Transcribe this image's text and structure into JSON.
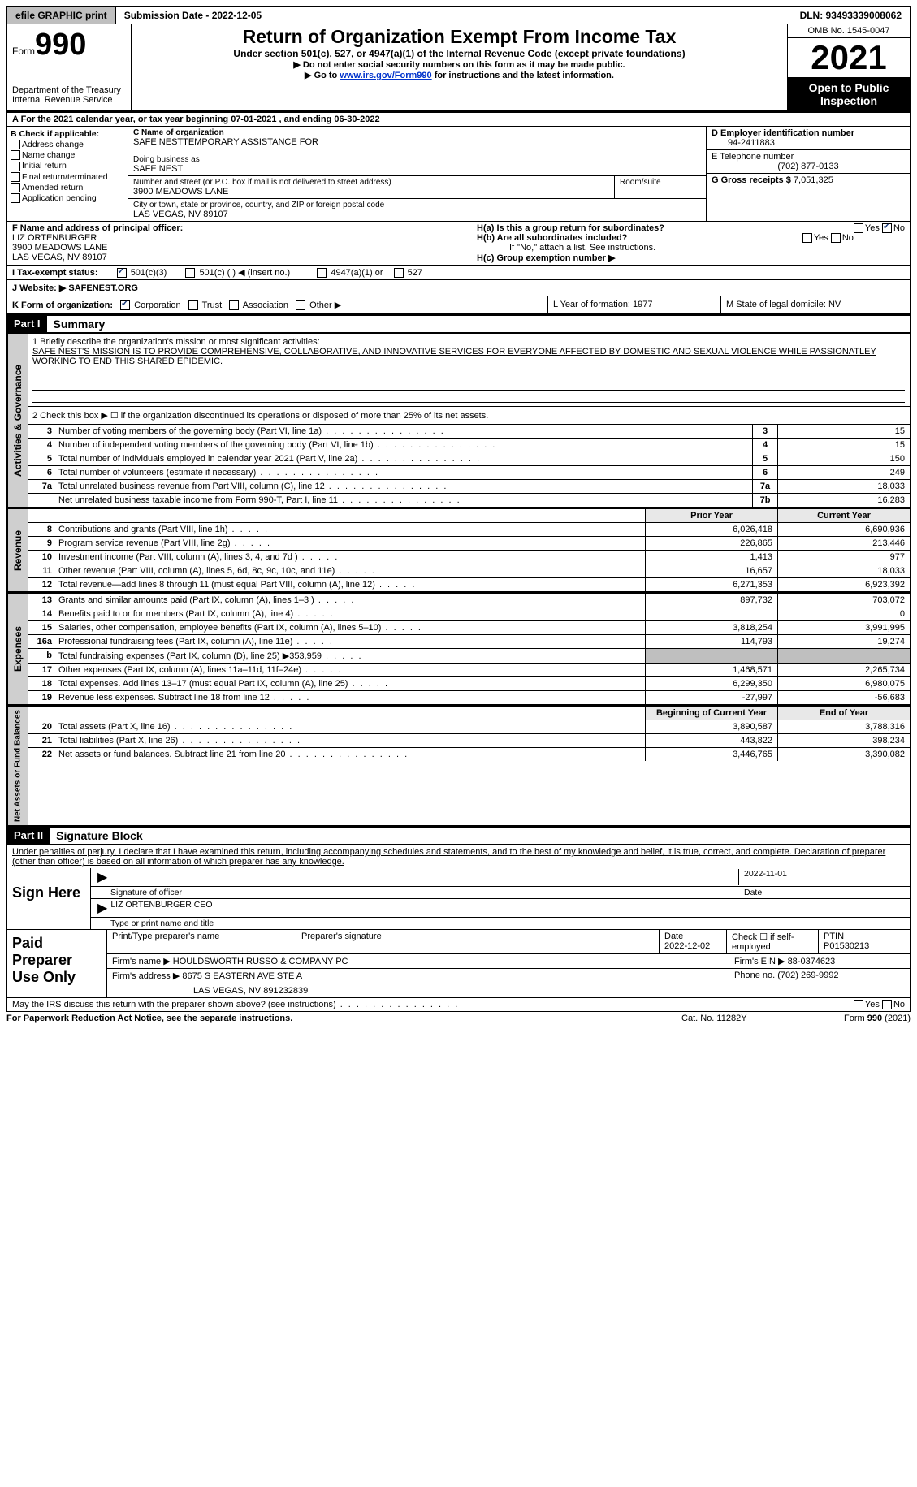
{
  "topbar": {
    "efile": "efile GRAPHIC print",
    "submission": "Submission Date - 2022-12-05",
    "dln": "DLN: 93493339008062"
  },
  "header": {
    "form_prefix": "Form",
    "form_number": "990",
    "title": "Return of Organization Exempt From Income Tax",
    "subtitle": "Under section 501(c), 527, or 4947(a)(1) of the Internal Revenue Code (except private foundations)",
    "note1": "▶ Do not enter social security numbers on this form as it may be made public.",
    "note2_prefix": "▶ Go to ",
    "note2_link": "www.irs.gov/Form990",
    "note2_suffix": " for instructions and the latest information.",
    "dept": "Department of the Treasury Internal Revenue Service",
    "omb": "OMB No. 1545-0047",
    "year": "2021",
    "open": "Open to Public Inspection"
  },
  "rowA": "A For the 2021 calendar year, or tax year beginning 07-01-2021     , and ending 06-30-2022",
  "colB": {
    "title": "B Check if applicable:",
    "opts": [
      "Address change",
      "Name change",
      "Initial return",
      "Final return/terminated",
      "Amended return",
      "Application pending"
    ]
  },
  "colC": {
    "name_label": "C Name of organization",
    "name": "SAFE NESTTEMPORARY ASSISTANCE FOR",
    "dba_label": "Doing business as",
    "dba": "SAFE NEST",
    "addr_label": "Number and street (or P.O. box if mail is not delivered to street address)",
    "addr": "3900 MEADOWS LANE",
    "room_label": "Room/suite",
    "city_label": "City or town, state or province, country, and ZIP or foreign postal code",
    "city": "LAS VEGAS, NV  89107"
  },
  "colD": {
    "ein_label": "D Employer identification number",
    "ein": "94-2411883",
    "phone_label": "E Telephone number",
    "phone": "(702) 877-0133",
    "gross_label": "G Gross receipts $",
    "gross": "7,051,325"
  },
  "rowF": {
    "label": "F  Name and address of principal officer:",
    "name": "LIZ ORTENBURGER",
    "addr1": "3900 MEADOWS LANE",
    "addr2": "LAS VEGAS, NV  89107"
  },
  "rowH": {
    "ha": "H(a)  Is this a group return for subordinates?",
    "hb": "H(b)  Are all subordinates included?",
    "hb_note": "If \"No,\" attach a list. See instructions.",
    "hc": "H(c)  Group exemption number ▶",
    "yes": "Yes",
    "no": "No"
  },
  "rowI": {
    "label": "I   Tax-exempt status:",
    "opt1": "501(c)(3)",
    "opt2": "501(c) (   ) ◀ (insert no.)",
    "opt3": "4947(a)(1) or",
    "opt4": "527"
  },
  "rowJ": {
    "label": "J   Website: ▶",
    "value": "SAFENEST.ORG"
  },
  "rowK": {
    "label": "K Form of organization:",
    "opts": [
      "Corporation",
      "Trust",
      "Association",
      "Other ▶"
    ]
  },
  "rowL": "L Year of formation: 1977",
  "rowM": "M State of legal domicile: NV",
  "part1": {
    "hdr": "Part I",
    "title": "Summary"
  },
  "q1": {
    "label": "1   Briefly describe the organization's mission or most significant activities:",
    "text": "SAFE NEST'S MISSION IS TO PROVIDE COMPREHENSIVE, COLLABORATIVE, AND INNOVATIVE SERVICES FOR EVERYONE AFFECTED BY DOMESTIC AND SEXUAL VIOLENCE WHILE PASSIONATLEY WORKING TO END THIS SHARED EPIDEMIC."
  },
  "q2": "2    Check this box ▶ ☐  if the organization discontinued its operations or disposed of more than 25% of its net assets.",
  "side1": "Activities & Governance",
  "side2": "Revenue",
  "side3": "Expenses",
  "side4": "Net Assets or Fund Balances",
  "rows_gov": [
    {
      "n": "3",
      "d": "Number of voting members of the governing body (Part VI, line 1a)",
      "b": "3",
      "v": "15"
    },
    {
      "n": "4",
      "d": "Number of independent voting members of the governing body (Part VI, line 1b)",
      "b": "4",
      "v": "15"
    },
    {
      "n": "5",
      "d": "Total number of individuals employed in calendar year 2021 (Part V, line 2a)",
      "b": "5",
      "v": "150"
    },
    {
      "n": "6",
      "d": "Total number of volunteers (estimate if necessary)",
      "b": "6",
      "v": "249"
    },
    {
      "n": "7a",
      "d": "Total unrelated business revenue from Part VIII, column (C), line 12",
      "b": "7a",
      "v": "18,033"
    },
    {
      "n": "",
      "d": "Net unrelated business taxable income from Form 990-T, Part I, line 11",
      "b": "7b",
      "v": "16,283"
    }
  ],
  "col_hdr": {
    "py": "Prior Year",
    "cy": "Current Year"
  },
  "rows_rev": [
    {
      "n": "8",
      "d": "Contributions and grants (Part VIII, line 1h)",
      "py": "6,026,418",
      "cy": "6,690,936"
    },
    {
      "n": "9",
      "d": "Program service revenue (Part VIII, line 2g)",
      "py": "226,865",
      "cy": "213,446"
    },
    {
      "n": "10",
      "d": "Investment income (Part VIII, column (A), lines 3, 4, and 7d )",
      "py": "1,413",
      "cy": "977"
    },
    {
      "n": "11",
      "d": "Other revenue (Part VIII, column (A), lines 5, 6d, 8c, 9c, 10c, and 11e)",
      "py": "16,657",
      "cy": "18,033"
    },
    {
      "n": "12",
      "d": "Total revenue—add lines 8 through 11 (must equal Part VIII, column (A), line 12)",
      "py": "6,271,353",
      "cy": "6,923,392"
    }
  ],
  "rows_exp": [
    {
      "n": "13",
      "d": "Grants and similar amounts paid (Part IX, column (A), lines 1–3 )",
      "py": "897,732",
      "cy": "703,072"
    },
    {
      "n": "14",
      "d": "Benefits paid to or for members (Part IX, column (A), line 4)",
      "py": "",
      "cy": "0"
    },
    {
      "n": "15",
      "d": "Salaries, other compensation, employee benefits (Part IX, column (A), lines 5–10)",
      "py": "3,818,254",
      "cy": "3,991,995"
    },
    {
      "n": "16a",
      "d": "Professional fundraising fees (Part IX, column (A), line 11e)",
      "py": "114,793",
      "cy": "19,274"
    },
    {
      "n": "b",
      "d": "Total fundraising expenses (Part IX, column (D), line 25) ▶353,959",
      "py": "SHADE",
      "cy": "SHADE"
    },
    {
      "n": "17",
      "d": "Other expenses (Part IX, column (A), lines 11a–11d, 11f–24e)",
      "py": "1,468,571",
      "cy": "2,265,734"
    },
    {
      "n": "18",
      "d": "Total expenses. Add lines 13–17 (must equal Part IX, column (A), line 25)",
      "py": "6,299,350",
      "cy": "6,980,075"
    },
    {
      "n": "19",
      "d": "Revenue less expenses. Subtract line 18 from line 12",
      "py": "-27,997",
      "cy": "-56,683"
    }
  ],
  "col_hdr2": {
    "py": "Beginning of Current Year",
    "cy": "End of Year"
  },
  "rows_net": [
    {
      "n": "20",
      "d": "Total assets (Part X, line 16)",
      "py": "3,890,587",
      "cy": "3,788,316"
    },
    {
      "n": "21",
      "d": "Total liabilities (Part X, line 26)",
      "py": "443,822",
      "cy": "398,234"
    },
    {
      "n": "22",
      "d": "Net assets or fund balances. Subtract line 21 from line 20",
      "py": "3,446,765",
      "cy": "3,390,082"
    }
  ],
  "part2": {
    "hdr": "Part II",
    "title": "Signature Block"
  },
  "penalty": "Under penalties of perjury, I declare that I have examined this return, including accompanying schedules and statements, and to the best of my knowledge and belief, it is true, correct, and complete. Declaration of preparer (other than officer) is based on all information of which preparer has any knowledge.",
  "sign": {
    "here": "Sign Here",
    "sig_officer": "Signature of officer",
    "date": "Date",
    "date_v": "2022-11-01",
    "name": "LIZ ORTENBURGER  CEO",
    "name_label": "Type or print name and title"
  },
  "paid": {
    "label": "Paid Preparer Use Only",
    "h1": "Print/Type preparer's name",
    "h2": "Preparer's signature",
    "h3": "Date",
    "h3v": "2022-12-02",
    "h4": "Check ☐ if self-employed",
    "h5": "PTIN",
    "h5v": "P01530213",
    "firm_label": "Firm's name     ▶",
    "firm": "HOULDSWORTH RUSSO & COMPANY PC",
    "ein_label": "Firm's EIN ▶",
    "ein": "88-0374623",
    "addr_label": "Firm's address ▶",
    "addr1": "8675 S EASTERN AVE STE A",
    "addr2": "LAS VEGAS, NV  891232839",
    "phone_label": "Phone no.",
    "phone": "(702) 269-9992"
  },
  "discuss": "May the IRS discuss this return with the preparer shown above? (see instructions)",
  "footer": {
    "pra": "For Paperwork Reduction Act Notice, see the separate instructions.",
    "cat": "Cat. No. 11282Y",
    "form": "Form 990 (2021)"
  }
}
